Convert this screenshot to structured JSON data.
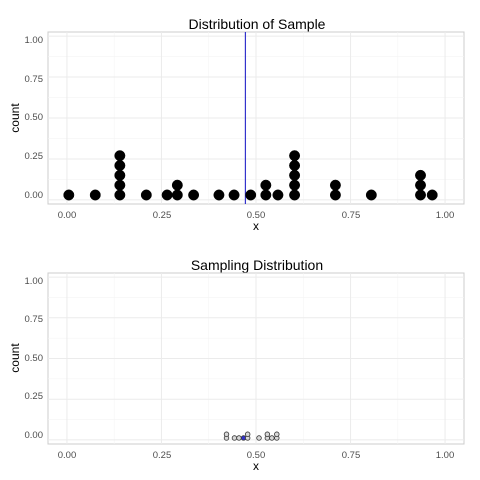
{
  "chart_data": [
    {
      "type": "scatter",
      "style": "dotplot",
      "title": "Distribution of Sample",
      "xlabel": "x",
      "ylabel": "count",
      "xlim": [
        -0.05,
        1.05
      ],
      "ylim": [
        -0.025,
        1.025
      ],
      "xticks": [
        "0.00",
        "0.25",
        "0.50",
        "0.75",
        "1.00"
      ],
      "yticks": [
        "0.00",
        "0.25",
        "0.50",
        "0.75",
        "1.00"
      ],
      "grid": true,
      "dot_fill": "#000000",
      "dot_stroke": "#000000",
      "reference_line": {
        "x": 0.472,
        "color": "#3333cc"
      },
      "points": [
        {
          "x": 0.005,
          "y": 0.03
        },
        {
          "x": 0.075,
          "y": 0.03
        },
        {
          "x": 0.14,
          "y": 0.03
        },
        {
          "x": 0.14,
          "y": 0.09
        },
        {
          "x": 0.14,
          "y": 0.15
        },
        {
          "x": 0.14,
          "y": 0.21
        },
        {
          "x": 0.14,
          "y": 0.27
        },
        {
          "x": 0.21,
          "y": 0.03
        },
        {
          "x": 0.265,
          "y": 0.03
        },
        {
          "x": 0.292,
          "y": 0.03
        },
        {
          "x": 0.292,
          "y": 0.09
        },
        {
          "x": 0.335,
          "y": 0.03
        },
        {
          "x": 0.402,
          "y": 0.03
        },
        {
          "x": 0.442,
          "y": 0.03
        },
        {
          "x": 0.486,
          "y": 0.03
        },
        {
          "x": 0.526,
          "y": 0.03
        },
        {
          "x": 0.526,
          "y": 0.09
        },
        {
          "x": 0.558,
          "y": 0.03
        },
        {
          "x": 0.602,
          "y": 0.03
        },
        {
          "x": 0.602,
          "y": 0.09
        },
        {
          "x": 0.602,
          "y": 0.15
        },
        {
          "x": 0.602,
          "y": 0.21
        },
        {
          "x": 0.602,
          "y": 0.27
        },
        {
          "x": 0.71,
          "y": 0.03
        },
        {
          "x": 0.71,
          "y": 0.09
        },
        {
          "x": 0.805,
          "y": 0.03
        },
        {
          "x": 0.935,
          "y": 0.03
        },
        {
          "x": 0.935,
          "y": 0.09
        },
        {
          "x": 0.935,
          "y": 0.15
        },
        {
          "x": 0.966,
          "y": 0.03
        }
      ]
    },
    {
      "type": "scatter",
      "style": "dotplot",
      "title": "Sampling Distribution",
      "xlabel": "x",
      "ylabel": "count",
      "xlim": [
        -0.05,
        1.05
      ],
      "ylim": [
        -0.025,
        1.025
      ],
      "xticks": [
        "0.00",
        "0.25",
        "0.50",
        "0.75",
        "1.00"
      ],
      "yticks": [
        "0.00",
        "0.25",
        "0.50",
        "0.75",
        "1.00"
      ],
      "grid": true,
      "dot_fill": "#d9d9d9",
      "dot_stroke": "#333333",
      "highlight_fill": "#3333cc",
      "points": [
        {
          "x": 0.422,
          "y": 0.012
        },
        {
          "x": 0.422,
          "y": 0.035
        },
        {
          "x": 0.443,
          "y": 0.012
        },
        {
          "x": 0.455,
          "y": 0.012
        },
        {
          "x": 0.467,
          "y": 0.012,
          "highlight": true
        },
        {
          "x": 0.478,
          "y": 0.012
        },
        {
          "x": 0.478,
          "y": 0.035
        },
        {
          "x": 0.508,
          "y": 0.012
        },
        {
          "x": 0.53,
          "y": 0.012
        },
        {
          "x": 0.53,
          "y": 0.035
        },
        {
          "x": 0.542,
          "y": 0.012
        },
        {
          "x": 0.555,
          "y": 0.012
        },
        {
          "x": 0.555,
          "y": 0.035
        }
      ]
    }
  ]
}
